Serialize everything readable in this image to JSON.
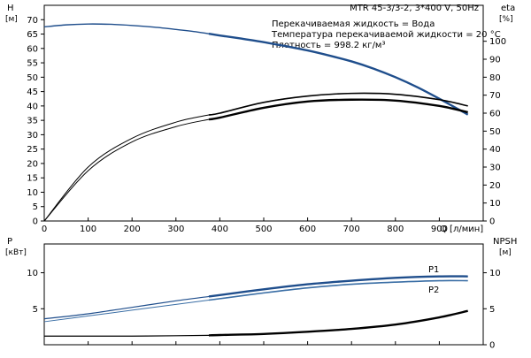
{
  "top_chart": {
    "title": "MTR 45-3/3-2, 3*400 V, 50Hz",
    "info_lines": [
      "Перекачиваемая жидкость = Вода",
      "Температура перекачиваемой жидкости = 20 °C",
      "Плотность = 998.2 кг/м³"
    ],
    "left_axis_label": "H",
    "left_axis_unit": "[м]",
    "right_axis_label": "eta",
    "right_axis_unit": "[%]",
    "x_axis_label": "Q [л/мин]"
  },
  "bottom_chart": {
    "left_axis_label": "P",
    "left_axis_unit": "[кВт]",
    "right_axis_label": "NPSH",
    "right_axis_unit": "[м]",
    "series_label_p1": "P1",
    "series_label_p2": "P2"
  },
  "colors": {
    "head": "#1f4e8c",
    "p1": "#1f4e8c",
    "p2": "#3a6ea5",
    "eta": "#000000",
    "npsh": "#000000"
  },
  "chart_data": [
    {
      "type": "line",
      "title": "MTR 45-3/3-2, 3*400 V, 50Hz",
      "xlabel": "Q [л/мин]",
      "ylabel": "H [м]",
      "y2label": "eta [%]",
      "xlim": [
        0,
        1000
      ],
      "ylim": [
        0,
        75
      ],
      "y2lim": [
        0,
        120
      ],
      "x_ticks": [
        0,
        100,
        200,
        300,
        400,
        500,
        600,
        700,
        800,
        900
      ],
      "y_ticks": [
        0,
        5,
        10,
        15,
        20,
        25,
        30,
        35,
        40,
        45,
        50,
        55,
        60,
        65,
        70
      ],
      "y2_ticks": [
        0,
        10,
        20,
        30,
        40,
        50,
        60,
        70,
        80,
        90,
        100
      ],
      "series": [
        {
          "x": [
            0,
            50,
            100,
            150,
            200,
            250,
            300,
            350,
            375,
            400,
            450,
            500,
            550,
            600,
            650,
            700,
            750,
            800,
            850,
            900,
            965
          ],
          "values": [
            67.5,
            68.2,
            68.5,
            68.4,
            68.0,
            67.4,
            66.6,
            65.7,
            65.1,
            64.5,
            63.4,
            62.2,
            60.8,
            59.3,
            57.5,
            55.5,
            53.0,
            50.0,
            46.5,
            42.5,
            37.0
          ],
          "axis": "left"
        },
        {
          "x": [
            0,
            100,
            200,
            300,
            375,
            400,
            500,
            600,
            700,
            800,
            900,
            965
          ],
          "values": [
            0,
            30,
            46,
            55,
            59,
            60,
            66,
            69.5,
            71,
            70.5,
            67.5,
            64
          ],
          "axis": "right"
        },
        {
          "x": [
            0,
            100,
            200,
            300,
            375,
            400,
            500,
            600,
            700,
            800,
            900,
            965
          ],
          "values": [
            0,
            28,
            44,
            52.5,
            56.5,
            57.5,
            63,
            66.5,
            67.5,
            67,
            64,
            60.5
          ],
          "axis": "right"
        }
      ]
    },
    {
      "type": "line",
      "ylabel": "P [кВт]",
      "y2label": "NPSH [м]",
      "xlim": [
        0,
        1000
      ],
      "ylim": [
        0,
        14
      ],
      "y2lim": [
        0,
        14
      ],
      "y_ticks": [
        5,
        10
      ],
      "y2_ticks": [
        0,
        5,
        10
      ],
      "series": [
        {
          "name": "P1",
          "x": [
            0,
            100,
            200,
            300,
            375,
            400,
            500,
            600,
            700,
            800,
            900,
            965
          ],
          "values": [
            3.6,
            4.3,
            5.2,
            6.1,
            6.7,
            6.9,
            7.7,
            8.4,
            8.9,
            9.3,
            9.5,
            9.5
          ],
          "axis": "left"
        },
        {
          "name": "P2",
          "x": [
            0,
            100,
            200,
            300,
            375,
            400,
            500,
            600,
            700,
            800,
            900,
            965
          ],
          "values": [
            3.2,
            4.0,
            4.8,
            5.6,
            6.2,
            6.4,
            7.2,
            7.9,
            8.4,
            8.7,
            8.9,
            8.9
          ],
          "axis": "left"
        },
        {
          "x": [
            0,
            100,
            200,
            300,
            375,
            400,
            500,
            600,
            700,
            800,
            900,
            965
          ],
          "values": [
            1.2,
            1.2,
            1.2,
            1.25,
            1.3,
            1.35,
            1.5,
            1.8,
            2.2,
            2.8,
            3.8,
            4.7
          ],
          "axis": "right"
        }
      ]
    }
  ]
}
